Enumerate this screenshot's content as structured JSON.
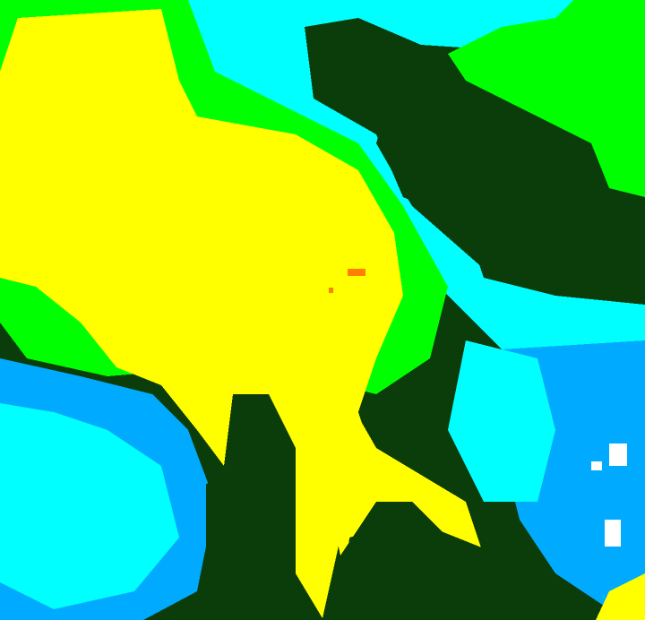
{
  "map": {
    "type": "classified-raster",
    "legend_visible": false,
    "class_colors": {
      "dark_green": "#0b3d0b",
      "green": "#00ff00",
      "yellow": "#ffff00",
      "orange": "#ff8000",
      "cyan": "#00ffff",
      "blue": "#00aaff",
      "white": "#ffffff"
    }
  }
}
